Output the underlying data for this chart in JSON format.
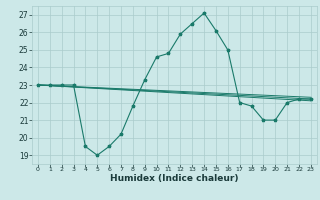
{
  "title": "",
  "xlabel": "Humidex (Indice chaleur)",
  "background_color": "#cce8e8",
  "grid_color": "#aacccc",
  "line_color": "#1a7a6a",
  "xlim": [
    -0.5,
    23.5
  ],
  "ylim": [
    18.5,
    27.5
  ],
  "yticks": [
    19,
    20,
    21,
    22,
    23,
    24,
    25,
    26,
    27
  ],
  "xticks": [
    0,
    1,
    2,
    3,
    4,
    5,
    6,
    7,
    8,
    9,
    10,
    11,
    12,
    13,
    14,
    15,
    16,
    17,
    18,
    19,
    20,
    21,
    22,
    23
  ],
  "main_x": [
    0,
    1,
    2,
    3,
    4,
    5,
    6,
    7,
    8,
    9,
    10,
    11,
    12,
    13,
    14,
    15,
    16,
    17,
    18,
    19,
    20,
    21,
    22,
    23
  ],
  "main_y": [
    23.0,
    23.0,
    23.0,
    23.0,
    19.5,
    19.0,
    19.5,
    20.2,
    21.8,
    23.3,
    24.6,
    24.8,
    25.9,
    26.5,
    27.1,
    26.1,
    25.0,
    22.0,
    21.8,
    21.0,
    21.0,
    22.0,
    22.2,
    22.2
  ],
  "straight_lines": [
    [
      23.0,
      22.3
    ],
    [
      23.0,
      22.2
    ],
    [
      23.0,
      22.1
    ]
  ]
}
